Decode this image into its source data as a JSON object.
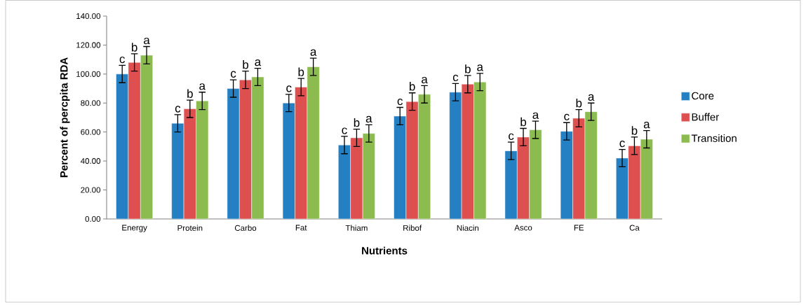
{
  "chart_data": {
    "type": "bar",
    "xlabel": "Nutrients",
    "ylabel": "Percent of percpita RDA",
    "categories": [
      "Energy",
      "Protein",
      "Carbo",
      "Fat",
      "Thiam",
      "Ribof",
      "Niacin",
      "Asco",
      "FE",
      "Ca"
    ],
    "series": [
      {
        "name": "Core",
        "color": "#2580c3",
        "values": [
          100,
          66,
          90,
          80,
          51,
          71,
          87.5,
          47,
          60.5,
          42
        ],
        "errors": [
          6,
          6,
          6,
          6,
          6,
          6,
          6,
          6,
          6,
          6
        ],
        "value_labels": [
          "c",
          "c",
          "c",
          "c",
          "c",
          "c",
          "c",
          "c",
          "c",
          "c"
        ]
      },
      {
        "name": "Buffer",
        "color": "#de4f4f",
        "values": [
          108,
          76,
          96,
          91,
          56,
          81,
          93,
          56.5,
          69.5,
          50.5
        ],
        "errors": [
          6,
          6,
          6,
          6,
          6,
          6,
          6,
          6,
          6,
          6
        ],
        "value_labels": [
          "b",
          "b",
          "b",
          "b",
          "b",
          "b",
          "b",
          "b",
          "b",
          "b"
        ]
      },
      {
        "name": "Transition",
        "color": "#8cbb50",
        "values": [
          113,
          81.5,
          98,
          105,
          59,
          86,
          94.5,
          61.5,
          74,
          55
        ],
        "errors": [
          6,
          6,
          6,
          6,
          6,
          6,
          6,
          6,
          6,
          6
        ],
        "value_labels": [
          "a",
          "a",
          "a",
          "a",
          "a",
          "a",
          "a",
          "a",
          "a",
          "a"
        ]
      }
    ],
    "ylim": [
      0,
      140
    ],
    "yticks": [
      {
        "value": 0,
        "label": "0.00"
      },
      {
        "value": 20,
        "label": "20.00"
      },
      {
        "value": 40,
        "label": "40.00"
      },
      {
        "value": 60,
        "label": "60.00"
      },
      {
        "value": 80,
        "label": "80.00"
      },
      {
        "value": 100,
        "label": "100.00"
      },
      {
        "value": 120,
        "label": "120.00"
      },
      {
        "value": 140,
        "label": "140.00"
      }
    ],
    "grid": false,
    "legend": "right"
  }
}
